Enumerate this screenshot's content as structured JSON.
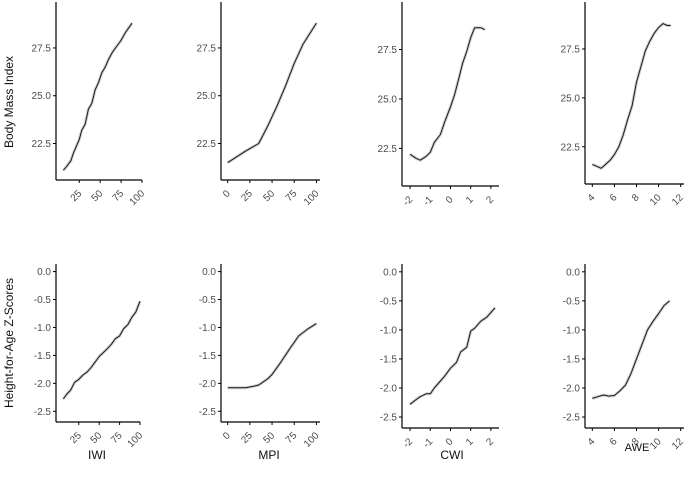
{
  "figure": {
    "row_labels": [
      "Body Mass Index",
      "Height-for-Age Z-Scores"
    ],
    "column_labels": [
      "IWI",
      "MPI",
      "CWI",
      "AWE"
    ],
    "line_color": "#1a1a1a",
    "axis_color": "#000000",
    "tick_label_color": "#4d4d4d"
  },
  "chart_data": [
    {
      "type": "line",
      "title": "",
      "xlabel": "IWI",
      "ylabel": "Body Mass Index",
      "xlim": [
        2,
        100
      ],
      "ylim": [
        20.8,
        29.8
      ],
      "xticks": [
        25,
        50,
        75,
        100
      ],
      "yticks": [
        22.5,
        25.0,
        27.5
      ],
      "x": [
        6,
        10,
        15,
        18,
        22,
        25,
        28,
        32,
        36,
        40,
        44,
        48,
        52,
        56,
        60,
        65,
        70,
        75,
        80,
        85,
        88
      ],
      "y": [
        21.1,
        21.3,
        21.6,
        22.0,
        22.4,
        22.7,
        23.2,
        23.5,
        24.3,
        24.6,
        25.3,
        25.7,
        26.2,
        26.5,
        26.9,
        27.3,
        27.6,
        27.9,
        28.3,
        28.6,
        28.8
      ]
    },
    {
      "type": "line",
      "title": "",
      "xlabel": "MPI",
      "ylabel": "",
      "xlim": [
        -3,
        104
      ],
      "ylim": [
        20.8,
        29.8
      ],
      "xticks": [
        0,
        25,
        50,
        75,
        100
      ],
      "yticks": [
        22.5,
        25.0,
        27.5
      ],
      "x": [
        0,
        10,
        20,
        35,
        45,
        55,
        65,
        75,
        85,
        100
      ],
      "y": [
        21.5,
        21.8,
        22.1,
        22.5,
        23.4,
        24.4,
        25.5,
        26.7,
        27.7,
        28.8
      ]
    },
    {
      "type": "line",
      "title": "",
      "xlabel": "CWI",
      "ylabel": "",
      "xlim": [
        -2.2,
        2.4
      ],
      "ylim": [
        20.8,
        29.8
      ],
      "xticks": [
        -2,
        -1,
        0,
        1,
        2
      ],
      "yticks": [
        22.5,
        25.0,
        27.5
      ],
      "x": [
        -2.0,
        -1.7,
        -1.5,
        -1.2,
        -1.0,
        -0.8,
        -0.5,
        -0.3,
        0.0,
        0.2,
        0.4,
        0.6,
        0.8,
        1.0,
        1.2,
        1.5,
        1.7
      ],
      "y": [
        22.2,
        22.0,
        21.9,
        22.1,
        22.3,
        22.8,
        23.2,
        23.8,
        24.6,
        25.2,
        26.0,
        26.8,
        27.4,
        28.1,
        28.6,
        28.6,
        28.5
      ]
    },
    {
      "type": "line",
      "title": "",
      "xlabel": "AWE",
      "ylabel": "",
      "xlim": [
        3.7,
        12.3
      ],
      "ylim": [
        20.8,
        29.8
      ],
      "xticks": [
        4,
        6,
        8,
        10,
        12
      ],
      "yticks": [
        22.5,
        25.0,
        27.5
      ],
      "x": [
        4.0,
        4.4,
        4.8,
        5.2,
        5.6,
        6.0,
        6.4,
        6.8,
        7.2,
        7.6,
        8.0,
        8.4,
        8.8,
        9.2,
        9.6,
        10.0,
        10.4,
        10.8,
        11.1
      ],
      "y": [
        21.6,
        21.5,
        21.4,
        21.6,
        21.8,
        22.1,
        22.5,
        23.1,
        23.9,
        24.6,
        25.8,
        26.6,
        27.4,
        27.9,
        28.3,
        28.6,
        28.8,
        28.7,
        28.7
      ]
    },
    {
      "type": "line",
      "title": "",
      "xlabel": "IWI",
      "ylabel": "Height-for-Age Z-Scores",
      "xlim": [
        2,
        100
      ],
      "ylim": [
        -2.62,
        0.1
      ],
      "xticks": [
        25,
        50,
        75,
        100
      ],
      "yticks": [
        0.0,
        -0.5,
        -1.0,
        -1.5,
        -2.0,
        -2.5
      ],
      "x": [
        6,
        10,
        15,
        20,
        25,
        30,
        35,
        40,
        45,
        50,
        55,
        60,
        65,
        70,
        75,
        80,
        85,
        90,
        95,
        100
      ],
      "y": [
        -2.28,
        -2.2,
        -2.12,
        -1.98,
        -1.93,
        -1.85,
        -1.8,
        -1.72,
        -1.62,
        -1.52,
        -1.45,
        -1.38,
        -1.3,
        -1.2,
        -1.15,
        -1.02,
        -0.95,
        -0.82,
        -0.72,
        -0.53
      ]
    },
    {
      "type": "line",
      "title": "",
      "xlabel": "MPI",
      "ylabel": "",
      "xlim": [
        -3,
        104
      ],
      "ylim": [
        -2.62,
        0.1
      ],
      "xticks": [
        0,
        25,
        50,
        75,
        100
      ],
      "yticks": [
        0.0,
        -0.5,
        -1.0,
        -1.5,
        -2.0,
        -2.5
      ],
      "x": [
        0,
        10,
        20,
        30,
        35,
        45,
        50,
        60,
        70,
        80,
        90,
        100
      ],
      "y": [
        -2.08,
        -2.08,
        -2.08,
        -2.05,
        -2.03,
        -1.92,
        -1.84,
        -1.62,
        -1.38,
        -1.15,
        -1.03,
        -0.93
      ]
    },
    {
      "type": "line",
      "title": "",
      "xlabel": "CWI",
      "ylabel": "",
      "xlim": [
        -2.2,
        2.4
      ],
      "ylim": [
        -2.62,
        0.1
      ],
      "xticks": [
        -2,
        -1,
        0,
        1,
        2
      ],
      "yticks": [
        0.0,
        -0.5,
        -1.0,
        -1.5,
        -2.0,
        -2.5
      ],
      "x": [
        -2.0,
        -1.7,
        -1.5,
        -1.2,
        -1.0,
        -0.8,
        -0.5,
        -0.3,
        0.0,
        0.3,
        0.5,
        0.8,
        1.0,
        1.2,
        1.5,
        1.8,
        2.0,
        2.2
      ],
      "y": [
        -2.28,
        -2.2,
        -2.15,
        -2.1,
        -2.1,
        -2.0,
        -1.88,
        -1.8,
        -1.66,
        -1.56,
        -1.38,
        -1.3,
        -1.02,
        -0.97,
        -0.85,
        -0.78,
        -0.7,
        -0.62
      ]
    },
    {
      "type": "line",
      "title": "",
      "xlabel": "AWE",
      "ylabel": "",
      "xlim": [
        3.7,
        12.3
      ],
      "ylim": [
        -2.62,
        0.1
      ],
      "xticks": [
        4,
        6,
        8,
        10,
        12
      ],
      "yticks": [
        0.0,
        -0.5,
        -1.0,
        -1.5,
        -2.0,
        -2.5
      ],
      "x": [
        4.0,
        4.5,
        5.0,
        5.5,
        6.0,
        6.5,
        7.0,
        7.5,
        8.0,
        8.5,
        9.0,
        9.5,
        10.0,
        10.5,
        11.0
      ],
      "y": [
        -2.18,
        -2.15,
        -2.12,
        -2.14,
        -2.13,
        -2.05,
        -1.95,
        -1.75,
        -1.5,
        -1.25,
        -1.0,
        -0.85,
        -0.72,
        -0.58,
        -0.5
      ]
    }
  ]
}
